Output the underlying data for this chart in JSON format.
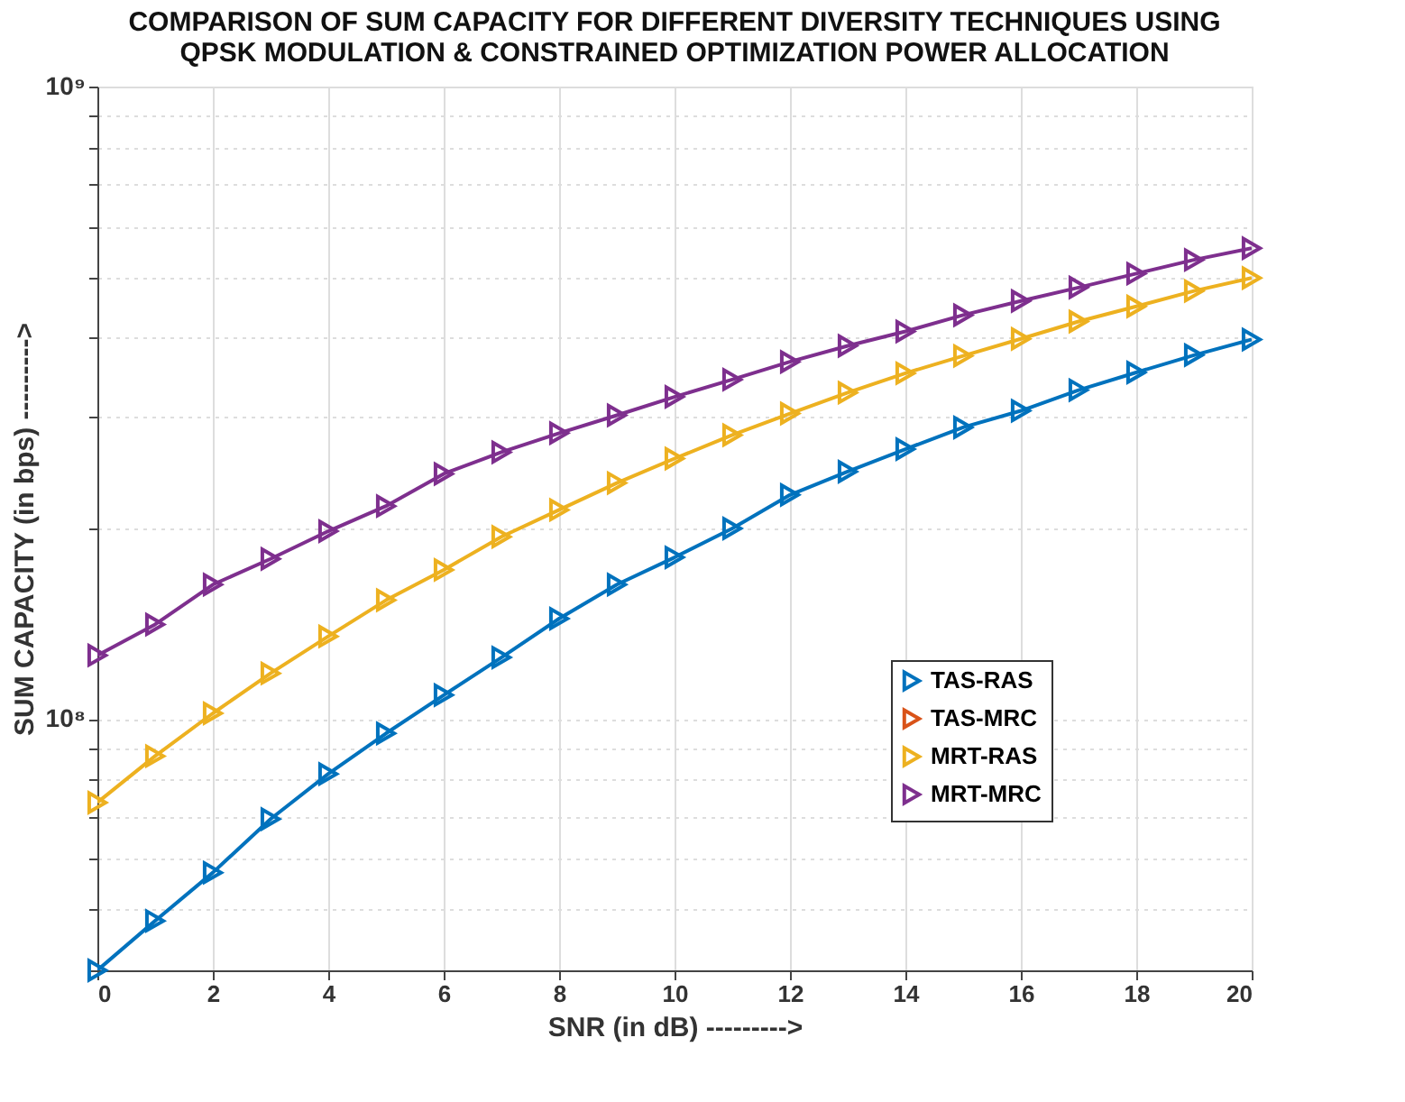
{
  "chart_data": {
    "type": "line",
    "title": "COMPARISON OF SUM CAPACITY FOR DIFFERENT DIVERSITY TECHNIQUES USING\nQPSK MODULATION & CONSTRAINED OPTIMIZATION POWER ALLOCATION",
    "xlabel": "SNR (in dB) --------->",
    "ylabel": "SUM CAPACITY (in bps) --------->",
    "x": [
      0,
      1,
      2,
      3,
      4,
      5,
      6,
      7,
      8,
      9,
      10,
      11,
      12,
      13,
      14,
      15,
      16,
      17,
      18,
      19,
      20
    ],
    "series": [
      {
        "name": "TAS-RAS",
        "color": "#0072bd",
        "values": [
          40000000.0,
          47900000.0,
          57100000.0,
          69400000.0,
          81800000.0,
          94800000.0,
          109000000.0,
          125000000.0,
          144000000.0,
          163000000.0,
          180000000.0,
          200000000.0,
          226000000.0,
          246000000.0,
          267000000.0,
          289000000.0,
          307000000.0,
          331000000.0,
          353000000.0,
          376000000.0,
          398000000.0
        ]
      },
      {
        "name": "TAS-MRC",
        "color": "#d95319",
        "values": [
          null,
          null,
          null,
          null,
          null,
          null,
          null,
          null,
          null,
          null,
          null,
          null,
          null,
          null,
          null,
          null,
          null,
          null,
          null,
          null,
          null
        ]
      },
      {
        "name": "MRT-RAS",
        "color": "#edb120",
        "values": [
          73700000.0,
          87300000.0,
          102000000.0,
          118000000.0,
          135000000.0,
          154000000.0,
          172000000.0,
          194000000.0,
          214000000.0,
          236000000.0,
          258000000.0,
          281000000.0,
          304000000.0,
          328000000.0,
          352000000.0,
          375000000.0,
          399000000.0,
          425000000.0,
          449000000.0,
          475000000.0,
          498000000.0
        ]
      },
      {
        "name": "MRT-MRC",
        "color": "#7e2f8e",
        "values": [
          126000000.0,
          141000000.0,
          163000000.0,
          179000000.0,
          198000000.0,
          217000000.0,
          244000000.0,
          264000000.0,
          283000000.0,
          302000000.0,
          323000000.0,
          344000000.0,
          367000000.0,
          389000000.0,
          410000000.0,
          435000000.0,
          458000000.0,
          481000000.0,
          506000000.0,
          532000000.0,
          555000000.0
        ]
      }
    ],
    "log": "y",
    "xlim": [
      0,
      20
    ],
    "xticks": [
      0,
      2,
      4,
      6,
      8,
      10,
      12,
      14,
      16,
      18,
      20
    ],
    "ylim": [
      40000000.0,
      1000000000.0
    ],
    "yticks": [
      {
        "value": 40000000.0,
        "label": null
      },
      {
        "value": 50000000.0,
        "label": null
      },
      {
        "value": 60000000.0,
        "label": null
      },
      {
        "value": 70000000.0,
        "label": null
      },
      {
        "value": 80000000.0,
        "label": null
      },
      {
        "value": 90000000.0,
        "label": null
      },
      {
        "value": 100000000.0,
        "label": "10⁸"
      },
      {
        "value": 200000000.0,
        "label": null
      },
      {
        "value": 300000000.0,
        "label": null
      },
      {
        "value": 400000000.0,
        "label": null
      },
      {
        "value": 500000000.0,
        "label": null
      },
      {
        "value": 600000000.0,
        "label": null
      },
      {
        "value": 700000000.0,
        "label": null
      },
      {
        "value": 800000000.0,
        "label": null
      },
      {
        "value": 900000000.0,
        "label": null
      },
      {
        "value": 1000000000.0,
        "label": "10⁹"
      }
    ],
    "grid": true,
    "legend": "right",
    "marker": "triangle",
    "line_style": "solid"
  }
}
